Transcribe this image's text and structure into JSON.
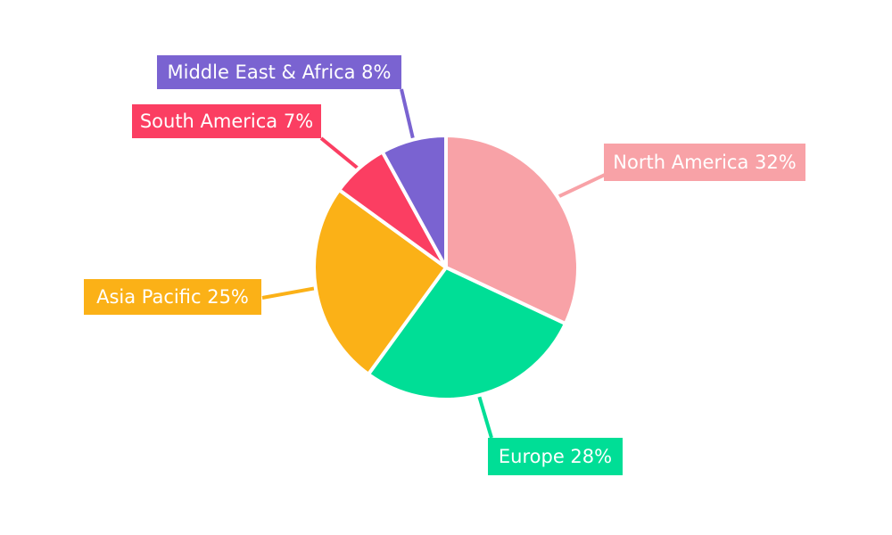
{
  "chart_data": {
    "type": "pie",
    "title": "",
    "categories": [
      "North America",
      "Europe",
      "Asia Pacific",
      "South America",
      "Middle East & Africa"
    ],
    "values": [
      32,
      28,
      25,
      7,
      8
    ],
    "unit": "%",
    "series_colors": [
      "#F8A2A7",
      "#00DE96",
      "#FBB117",
      "#FB3E62",
      "#7A63D1"
    ],
    "label_texts": [
      "North America 32%",
      "Europe 28%",
      "Asia Pacific 25%",
      "South America 7%",
      "Middle East & Africa 8%"
    ],
    "label_text_color": "#FFFFFF",
    "background_color": "#FFFFFF",
    "start_angle_deg": 0,
    "direction": "clockwise",
    "legend_position": "none",
    "labels_style": "external boxes with leader lines"
  }
}
